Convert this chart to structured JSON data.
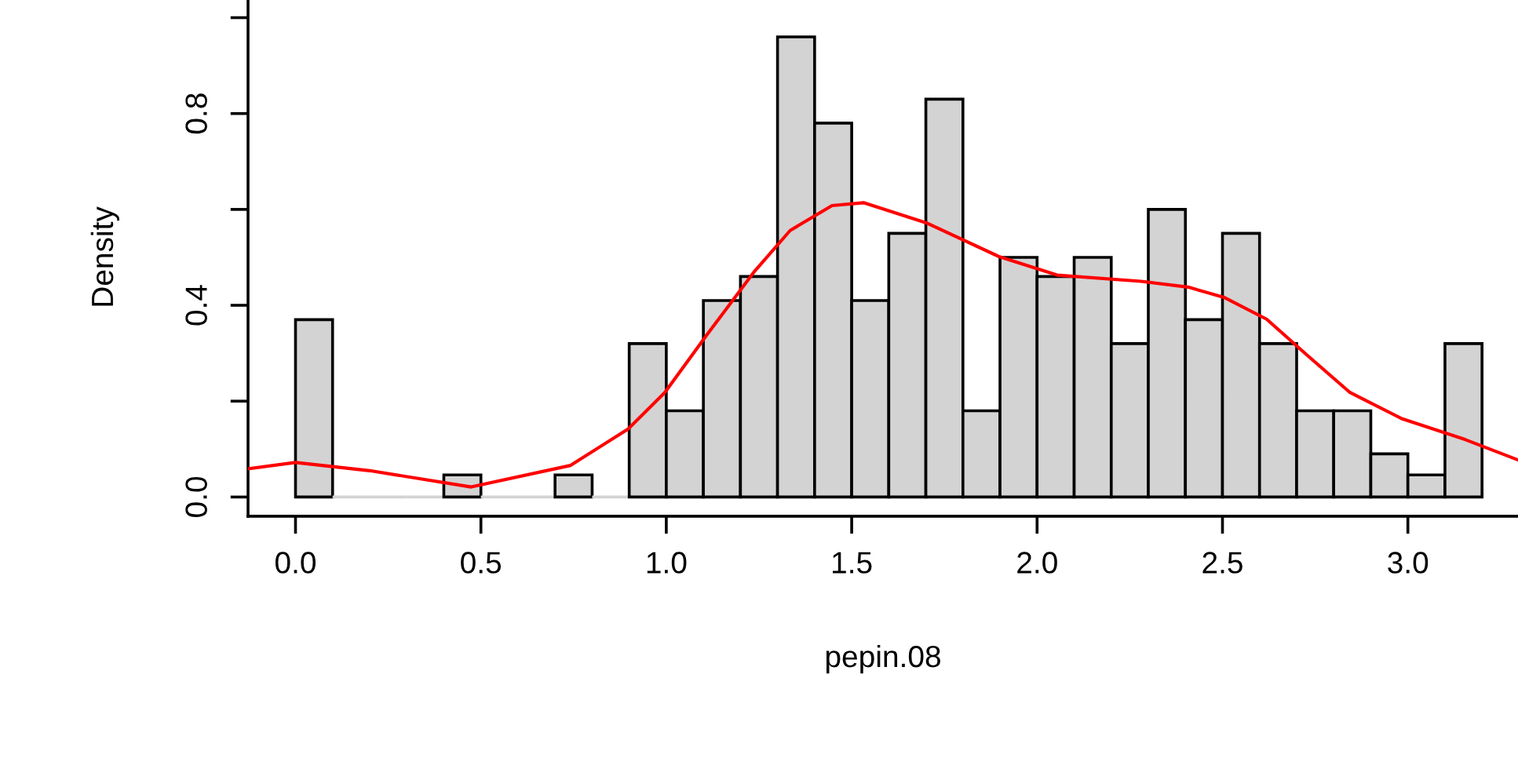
{
  "chart_data": {
    "type": "histogram",
    "xlabel": "pepin.08",
    "ylabel": "Density",
    "bins": [
      0.0,
      0.1,
      0.2,
      0.3,
      0.4,
      0.5,
      0.6,
      0.7,
      0.8,
      0.9,
      1.0,
      1.1,
      1.2,
      1.3,
      1.4,
      1.5,
      1.6,
      1.7,
      1.8,
      1.9,
      2.0,
      2.1,
      2.2,
      2.3,
      2.4,
      2.5,
      2.6,
      2.7,
      2.8,
      2.9,
      3.0,
      3.1,
      3.2
    ],
    "series": [
      {
        "color": "#d3d3d3",
        "values": [
          0.37,
          0,
          0,
          0,
          0.046,
          0,
          0,
          0.046,
          0,
          0.32,
          0.18,
          0.41,
          0.46,
          0.96,
          0.78,
          0.41,
          0.55,
          0.83,
          0.18,
          0.5,
          0.46,
          0.5,
          0.32,
          0.6,
          0.37,
          0.55,
          0.32,
          0.18,
          0.18,
          0.09,
          0.046,
          0.32
        ]
      },
      {
        "type": "line",
        "color": "#ff0000",
        "x": [
          -0.126,
          0.0,
          0.2,
          0.474,
          0.742,
          0.897,
          0.996,
          1.109,
          1.236,
          1.334,
          1.447,
          1.532,
          1.701,
          1.899,
          2.054,
          2.28,
          2.407,
          2.506,
          2.619,
          2.731,
          2.844,
          2.985,
          3.154,
          3.295
        ],
        "values": [
          0.059,
          0.072,
          0.055,
          0.021,
          0.066,
          0.142,
          0.218,
          0.338,
          0.469,
          0.556,
          0.608,
          0.614,
          0.572,
          0.501,
          0.463,
          0.45,
          0.438,
          0.416,
          0.371,
          0.294,
          0.218,
          0.163,
          0.12,
          0.078
        ]
      }
    ],
    "xlim": [
      -0.128,
      3.297
    ],
    "ylim": [
      -0.04,
      1.04
    ],
    "xticks": [
      {
        "value": 0.0,
        "label": "0.0"
      },
      {
        "value": 0.5,
        "label": "0.5"
      },
      {
        "value": 1.0,
        "label": "1.0"
      },
      {
        "value": 1.5,
        "label": "1.5"
      },
      {
        "value": 2.0,
        "label": "2.0"
      },
      {
        "value": 2.5,
        "label": "2.5"
      },
      {
        "value": 3.0,
        "label": "3.0"
      }
    ],
    "yticks": [
      {
        "value": 0.0,
        "label": "0.0"
      },
      {
        "value": 0.2,
        "label": null
      },
      {
        "value": 0.4,
        "label": "0.4"
      },
      {
        "value": 0.6,
        "label": null
      },
      {
        "value": 0.8,
        "label": "0.8"
      },
      {
        "value": 1.0,
        "label": null
      }
    ],
    "grid": false,
    "legend": false
  }
}
